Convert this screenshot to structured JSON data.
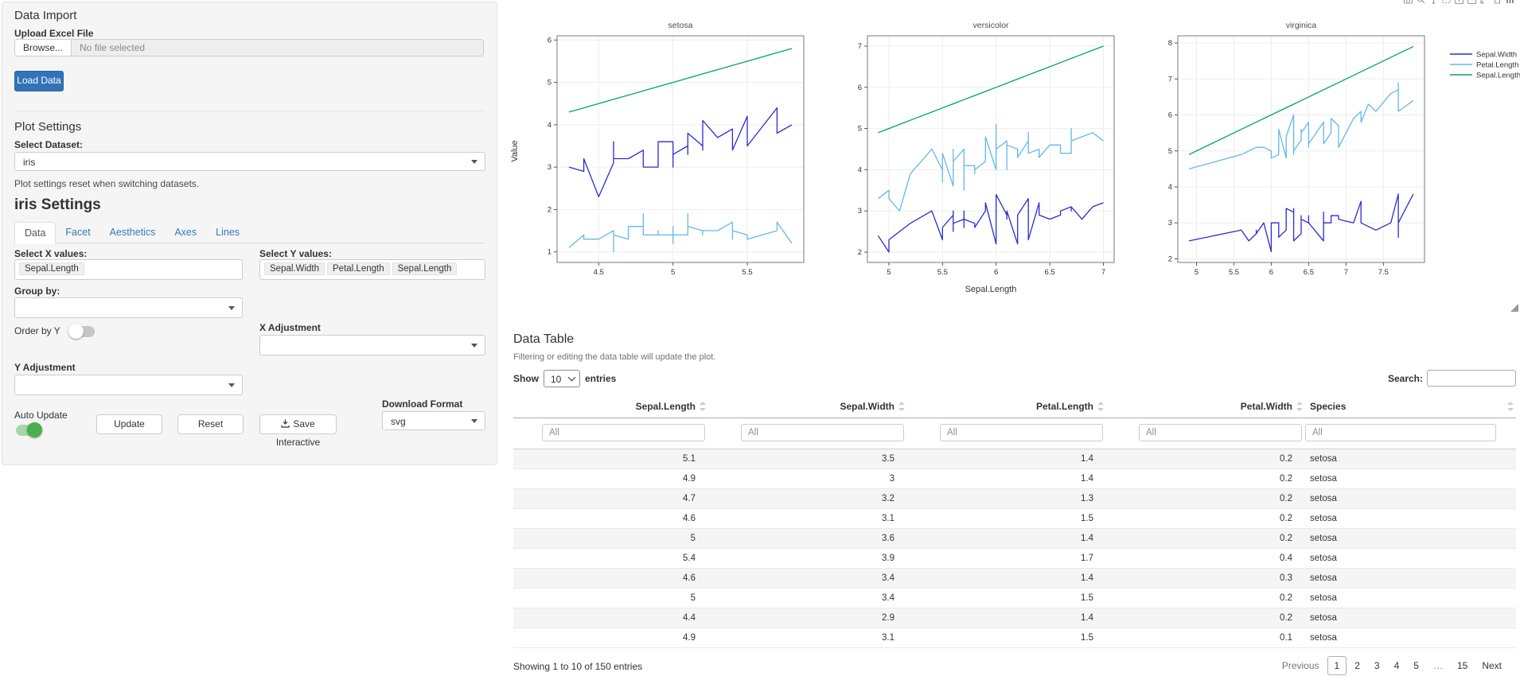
{
  "sidebar": {
    "data_import": {
      "title": "Data Import",
      "upload_label": "Upload Excel File",
      "browse_label": "Browse...",
      "file_placeholder": "No file selected",
      "load_button": "Load Data"
    },
    "plot_settings": {
      "title": "Plot Settings",
      "dataset_label": "Select Dataset:",
      "dataset_value": "iris",
      "note": "Plot settings reset when switching datasets."
    },
    "settings": {
      "title": "iris Settings",
      "tabs": [
        "Data",
        "Facet",
        "Aesthetics",
        "Axes",
        "Lines"
      ],
      "active_tab": "Data",
      "select_x_label": "Select X values:",
      "x_values": [
        "Sepal.Length"
      ],
      "select_y_label": "Select Y values:",
      "y_values": [
        "Sepal.Width",
        "Petal.Length",
        "Sepal.Length"
      ],
      "group_by_label": "Group by:",
      "order_by_y_label": "Order by Y",
      "order_by_y_on": false,
      "x_adjustment_label": "X Adjustment",
      "y_adjustment_label": "Y Adjustment",
      "auto_update_label": "Auto Update",
      "auto_update_on": true,
      "update_button": "Update",
      "reset_button": "Reset",
      "save_button": "Save Interactive",
      "download_format_label": "Download Format",
      "download_format_value": "svg"
    }
  },
  "plot": {
    "modebar_icons": [
      "camera-icon",
      "zoom-icon",
      "pan-icon",
      "box-select-icon",
      "zoom-in-icon",
      "zoom-out-icon",
      "autoscale-icon",
      "home-icon",
      "plotly-logo-icon"
    ]
  },
  "chart_data": {
    "type": "line",
    "title": "",
    "xlabel": "Sepal.Length",
    "ylabel": "Value",
    "legend_position": "right",
    "grid": true,
    "series": [
      {
        "name": "Sepal.Width",
        "color": "#2b2bd5"
      },
      {
        "name": "Petal.Length",
        "color": "#63b8ea"
      },
      {
        "name": "Sepal.Length",
        "color": "#00a273"
      }
    ],
    "point_format": [
      "Sepal.Length",
      "Sepal.Width",
      "Petal.Length"
    ],
    "facets": [
      {
        "title": "setosa",
        "x_ticks": [
          4.5,
          5,
          5.5
        ],
        "y_ticks": [
          1,
          2,
          3,
          4,
          5,
          6
        ],
        "x_domain": [
          4.22,
          5.88
        ],
        "y_domain": [
          0.75,
          6.1
        ],
        "points": [
          [
            5.1,
            3.5,
            1.4
          ],
          [
            4.9,
            3.0,
            1.4
          ],
          [
            4.7,
            3.2,
            1.3
          ],
          [
            4.6,
            3.1,
            1.5
          ],
          [
            5.0,
            3.6,
            1.4
          ],
          [
            5.4,
            3.9,
            1.7
          ],
          [
            4.6,
            3.4,
            1.4
          ],
          [
            5.0,
            3.4,
            1.5
          ],
          [
            4.4,
            2.9,
            1.4
          ],
          [
            4.9,
            3.1,
            1.5
          ],
          [
            5.4,
            3.7,
            1.5
          ],
          [
            4.8,
            3.4,
            1.6
          ],
          [
            4.8,
            3.0,
            1.4
          ],
          [
            4.3,
            3.0,
            1.1
          ],
          [
            5.8,
            4.0,
            1.2
          ],
          [
            5.7,
            4.4,
            1.5
          ],
          [
            5.4,
            3.9,
            1.3
          ],
          [
            5.1,
            3.5,
            1.4
          ],
          [
            5.7,
            3.8,
            1.7
          ],
          [
            5.1,
            3.8,
            1.5
          ],
          [
            5.4,
            3.4,
            1.7
          ],
          [
            5.1,
            3.7,
            1.5
          ],
          [
            4.6,
            3.6,
            1.0
          ],
          [
            5.1,
            3.3,
            1.7
          ],
          [
            4.8,
            3.4,
            1.9
          ],
          [
            5.0,
            3.0,
            1.6
          ],
          [
            5.0,
            3.4,
            1.6
          ],
          [
            5.2,
            3.5,
            1.5
          ],
          [
            5.2,
            3.4,
            1.4
          ],
          [
            4.7,
            3.2,
            1.6
          ],
          [
            4.8,
            3.1,
            1.6
          ],
          [
            5.4,
            3.4,
            1.5
          ],
          [
            5.2,
            4.1,
            1.5
          ],
          [
            5.5,
            4.2,
            1.4
          ],
          [
            4.9,
            3.1,
            1.5
          ],
          [
            5.0,
            3.2,
            1.2
          ],
          [
            5.5,
            3.5,
            1.3
          ],
          [
            4.9,
            3.6,
            1.4
          ],
          [
            4.4,
            3.0,
            1.3
          ],
          [
            5.1,
            3.4,
            1.5
          ],
          [
            5.0,
            3.5,
            1.3
          ],
          [
            4.5,
            2.3,
            1.3
          ],
          [
            4.4,
            3.2,
            1.3
          ],
          [
            5.0,
            3.5,
            1.6
          ],
          [
            5.1,
            3.8,
            1.9
          ],
          [
            4.8,
            3.0,
            1.4
          ],
          [
            5.1,
            3.8,
            1.6
          ],
          [
            4.6,
            3.2,
            1.4
          ],
          [
            5.3,
            3.7,
            1.5
          ],
          [
            5.0,
            3.3,
            1.4
          ]
        ]
      },
      {
        "title": "versicolor",
        "x_ticks": [
          5,
          5.5,
          6,
          6.5,
          7
        ],
        "y_ticks": [
          2,
          3,
          4,
          5,
          6,
          7
        ],
        "x_domain": [
          4.8,
          7.1
        ],
        "y_domain": [
          1.75,
          7.25
        ],
        "points": [
          [
            7.0,
            3.2,
            4.7
          ],
          [
            6.4,
            3.2,
            4.5
          ],
          [
            6.9,
            3.1,
            4.9
          ],
          [
            5.5,
            2.3,
            4.0
          ],
          [
            6.5,
            2.8,
            4.6
          ],
          [
            5.7,
            2.8,
            4.5
          ],
          [
            6.3,
            3.3,
            4.7
          ],
          [
            4.9,
            2.4,
            3.3
          ],
          [
            6.6,
            2.9,
            4.6
          ],
          [
            5.2,
            2.7,
            3.9
          ],
          [
            5.0,
            2.0,
            3.5
          ],
          [
            5.9,
            3.0,
            4.2
          ],
          [
            6.0,
            2.2,
            4.0
          ],
          [
            6.1,
            2.9,
            4.7
          ],
          [
            5.6,
            2.9,
            3.6
          ],
          [
            6.7,
            3.1,
            4.4
          ],
          [
            5.6,
            3.0,
            4.5
          ],
          [
            5.8,
            2.7,
            4.1
          ],
          [
            6.2,
            2.2,
            4.5
          ],
          [
            5.6,
            2.5,
            3.9
          ],
          [
            5.9,
            3.2,
            4.8
          ],
          [
            6.1,
            2.8,
            4.0
          ],
          [
            6.3,
            2.5,
            4.9
          ],
          [
            6.1,
            2.8,
            4.7
          ],
          [
            6.4,
            2.9,
            4.3
          ],
          [
            6.6,
            3.0,
            4.4
          ],
          [
            6.8,
            2.8,
            4.8
          ],
          [
            6.7,
            3.0,
            5.0
          ],
          [
            6.0,
            2.9,
            4.5
          ],
          [
            5.7,
            2.6,
            3.5
          ],
          [
            5.5,
            2.4,
            3.8
          ],
          [
            5.5,
            2.4,
            3.7
          ],
          [
            5.8,
            2.7,
            3.9
          ],
          [
            6.0,
            2.7,
            5.1
          ],
          [
            5.4,
            3.0,
            4.5
          ],
          [
            6.0,
            3.4,
            4.5
          ],
          [
            6.7,
            3.1,
            4.7
          ],
          [
            6.3,
            2.3,
            4.4
          ],
          [
            5.6,
            3.0,
            4.1
          ],
          [
            5.5,
            2.5,
            4.0
          ],
          [
            5.5,
            2.6,
            4.4
          ],
          [
            6.1,
            3.0,
            4.6
          ],
          [
            5.8,
            2.6,
            4.0
          ],
          [
            5.0,
            2.3,
            3.3
          ],
          [
            5.6,
            2.7,
            4.2
          ],
          [
            5.7,
            3.0,
            4.2
          ],
          [
            5.7,
            2.9,
            4.2
          ],
          [
            6.2,
            2.9,
            4.3
          ],
          [
            5.1,
            2.5,
            3.0
          ],
          [
            5.7,
            2.8,
            4.1
          ]
        ]
      },
      {
        "title": "virginica",
        "x_ticks": [
          5,
          5.5,
          6,
          6.5,
          7,
          7.5
        ],
        "y_ticks": [
          2,
          3,
          4,
          5,
          6,
          7,
          8
        ],
        "x_domain": [
          4.75,
          8.05
        ],
        "y_domain": [
          1.9,
          8.2
        ],
        "points": [
          [
            6.3,
            3.3,
            6.0
          ],
          [
            5.8,
            2.7,
            5.1
          ],
          [
            7.1,
            3.0,
            5.9
          ],
          [
            6.3,
            2.9,
            5.6
          ],
          [
            6.5,
            3.0,
            5.8
          ],
          [
            7.6,
            3.0,
            6.6
          ],
          [
            4.9,
            2.5,
            4.5
          ],
          [
            7.3,
            2.9,
            6.3
          ],
          [
            6.7,
            2.5,
            5.8
          ],
          [
            7.2,
            3.6,
            6.1
          ],
          [
            6.5,
            3.2,
            5.1
          ],
          [
            6.4,
            2.7,
            5.3
          ],
          [
            6.8,
            3.0,
            5.5
          ],
          [
            5.7,
            2.5,
            5.0
          ],
          [
            5.8,
            2.8,
            5.1
          ],
          [
            6.4,
            3.2,
            5.3
          ],
          [
            6.5,
            3.0,
            5.5
          ],
          [
            7.7,
            3.8,
            6.7
          ],
          [
            7.7,
            2.6,
            6.9
          ],
          [
            6.0,
            2.2,
            5.0
          ],
          [
            6.9,
            3.2,
            5.7
          ],
          [
            5.6,
            2.8,
            4.9
          ],
          [
            7.7,
            2.8,
            6.7
          ],
          [
            6.3,
            2.7,
            4.9
          ],
          [
            6.7,
            3.3,
            5.7
          ],
          [
            7.2,
            3.2,
            6.0
          ],
          [
            6.2,
            2.8,
            4.8
          ],
          [
            6.1,
            3.0,
            4.9
          ],
          [
            6.4,
            2.8,
            5.6
          ],
          [
            7.2,
            3.0,
            5.8
          ],
          [
            7.4,
            2.8,
            6.1
          ],
          [
            7.9,
            3.8,
            6.4
          ],
          [
            6.4,
            2.8,
            5.6
          ],
          [
            6.3,
            2.8,
            5.1
          ],
          [
            6.1,
            2.6,
            5.6
          ],
          [
            7.7,
            3.0,
            6.1
          ],
          [
            6.3,
            3.4,
            5.6
          ],
          [
            6.4,
            3.1,
            5.5
          ],
          [
            6.0,
            3.0,
            4.8
          ],
          [
            6.9,
            3.1,
            5.4
          ],
          [
            6.7,
            3.1,
            5.6
          ],
          [
            6.9,
            3.1,
            5.1
          ],
          [
            5.8,
            2.7,
            5.1
          ],
          [
            6.8,
            3.2,
            5.9
          ],
          [
            6.7,
            3.3,
            5.7
          ],
          [
            6.7,
            3.0,
            5.2
          ],
          [
            6.3,
            2.5,
            5.0
          ],
          [
            6.5,
            3.0,
            5.2
          ],
          [
            6.2,
            3.4,
            5.4
          ],
          [
            5.9,
            3.0,
            5.1
          ]
        ]
      }
    ]
  },
  "table": {
    "title": "Data Table",
    "subtitle": "Filtering or editing the data table will update the plot.",
    "show_label": "Show",
    "page_length": "10",
    "entries_label": "entries",
    "search_label": "Search:",
    "search_value": "",
    "columns": [
      "Sepal.Length",
      "Sepal.Width",
      "Petal.Length",
      "Petal.Width",
      "Species"
    ],
    "filter_placeholder": "All",
    "rows": [
      [
        "5.1",
        "3.5",
        "1.4",
        "0.2",
        "setosa"
      ],
      [
        "4.9",
        "3",
        "1.4",
        "0.2",
        "setosa"
      ],
      [
        "4.7",
        "3.2",
        "1.3",
        "0.2",
        "setosa"
      ],
      [
        "4.6",
        "3.1",
        "1.5",
        "0.2",
        "setosa"
      ],
      [
        "5",
        "3.6",
        "1.4",
        "0.2",
        "setosa"
      ],
      [
        "5.4",
        "3.9",
        "1.7",
        "0.4",
        "setosa"
      ],
      [
        "4.6",
        "3.4",
        "1.4",
        "0.3",
        "setosa"
      ],
      [
        "5",
        "3.4",
        "1.5",
        "0.2",
        "setosa"
      ],
      [
        "4.4",
        "2.9",
        "1.4",
        "0.2",
        "setosa"
      ],
      [
        "4.9",
        "3.1",
        "1.5",
        "0.1",
        "setosa"
      ]
    ],
    "info": "Showing 1 to 10 of 150 entries",
    "pagination": {
      "previous": "Previous",
      "pages": [
        "1",
        "2",
        "3",
        "4",
        "5",
        "…",
        "15"
      ],
      "current": "1",
      "next": "Next"
    }
  }
}
